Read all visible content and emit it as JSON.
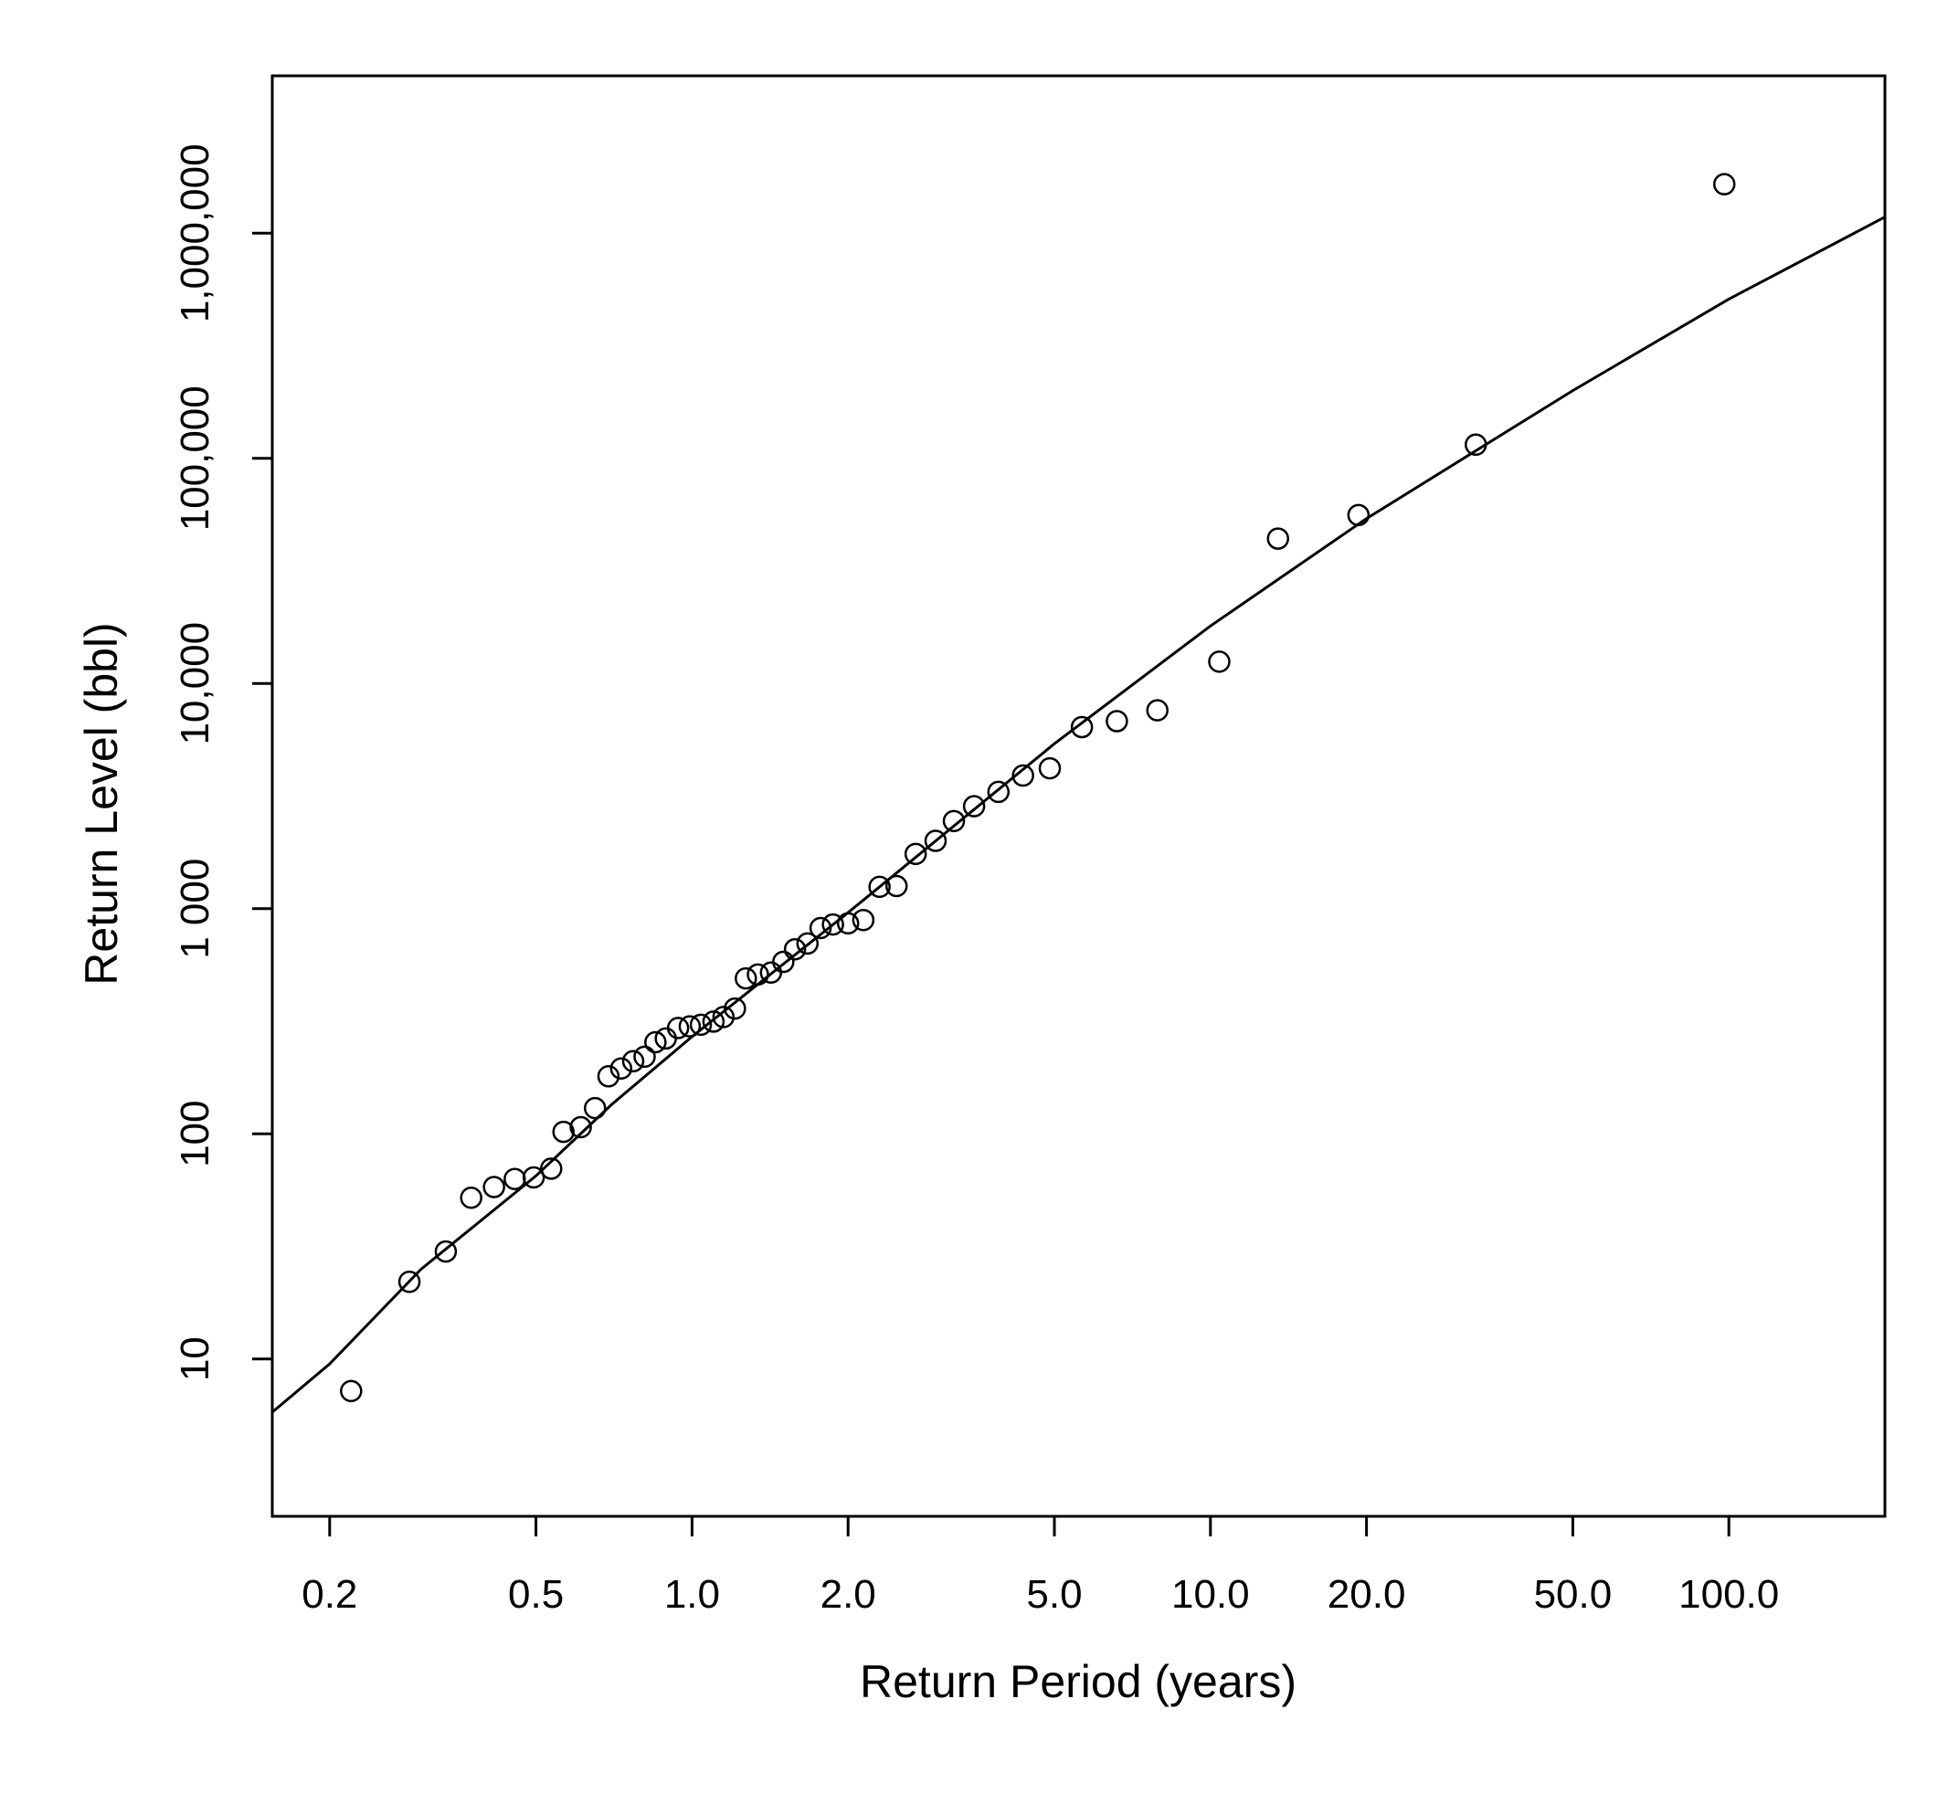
{
  "chart_data": {
    "type": "scatter",
    "title": "",
    "xlabel": "Return Period (years)",
    "ylabel": "Return Level (bbl)",
    "x_scale": "log",
    "y_scale": "log",
    "xlim": [
      0.155,
      200
    ],
    "ylim": [
      2,
      5000000
    ],
    "grid": false,
    "legend": "none",
    "x_ticks": [
      {
        "value": 0.2,
        "label": "0.2"
      },
      {
        "value": 0.5,
        "label": "0.5"
      },
      {
        "value": 1.0,
        "label": "1.0"
      },
      {
        "value": 2.0,
        "label": "2.0"
      },
      {
        "value": 5.0,
        "label": "5.0"
      },
      {
        "value": 10.0,
        "label": "10.0"
      },
      {
        "value": 20.0,
        "label": "20.0"
      },
      {
        "value": 50.0,
        "label": "50.0"
      },
      {
        "value": 100.0,
        "label": "100.0"
      }
    ],
    "y_ticks": [
      {
        "value": 10,
        "label": "10"
      },
      {
        "value": 100,
        "label": "100"
      },
      {
        "value": 1000,
        "label": "1 000"
      },
      {
        "value": 10000,
        "label": "10,000"
      },
      {
        "value": 100000,
        "label": "100,000"
      },
      {
        "value": 1000000,
        "label": "1,000,000"
      }
    ],
    "series": [
      {
        "type": "scatter",
        "marker": "open-circle",
        "points": [
          [
            0.22,
            7.2
          ],
          [
            0.285,
            22
          ],
          [
            0.335,
            30
          ],
          [
            0.375,
            52
          ],
          [
            0.415,
            58
          ],
          [
            0.455,
            63
          ],
          [
            0.495,
            64
          ],
          [
            0.535,
            70
          ],
          [
            0.565,
            102
          ],
          [
            0.61,
            107
          ],
          [
            0.65,
            130
          ],
          [
            0.69,
            180
          ],
          [
            0.73,
            195
          ],
          [
            0.77,
            210
          ],
          [
            0.81,
            220
          ],
          [
            0.85,
            255
          ],
          [
            0.89,
            265
          ],
          [
            0.94,
            295
          ],
          [
            0.99,
            300
          ],
          [
            1.04,
            305
          ],
          [
            1.1,
            315
          ],
          [
            1.15,
            330
          ],
          [
            1.21,
            360
          ],
          [
            1.27,
            490
          ],
          [
            1.34,
            510
          ],
          [
            1.42,
            520
          ],
          [
            1.5,
            580
          ],
          [
            1.58,
            660
          ],
          [
            1.67,
            700
          ],
          [
            1.77,
            820
          ],
          [
            1.87,
            850
          ],
          [
            2.0,
            860
          ],
          [
            2.14,
            890
          ],
          [
            2.3,
            1250
          ],
          [
            2.48,
            1260
          ],
          [
            2.7,
            1750
          ],
          [
            2.95,
            2000
          ],
          [
            3.2,
            2450
          ],
          [
            3.5,
            2850
          ],
          [
            3.9,
            3300
          ],
          [
            4.35,
            3900
          ],
          [
            4.9,
            4200
          ],
          [
            5.65,
            6400
          ],
          [
            6.6,
            6800
          ],
          [
            7.9,
            7600
          ],
          [
            10.4,
            12500
          ],
          [
            13.5,
            44000
          ],
          [
            19.3,
            56000
          ],
          [
            32.5,
            115000
          ],
          [
            98,
            1650000
          ]
        ]
      },
      {
        "type": "line",
        "style": "solid",
        "points": [
          [
            0.155,
            5.8
          ],
          [
            0.2,
            9.5
          ],
          [
            0.3,
            25
          ],
          [
            0.5,
            65
          ],
          [
            0.7,
            135
          ],
          [
            1.0,
            270
          ],
          [
            2.0,
            960
          ],
          [
            5.0,
            5400
          ],
          [
            10.0,
            18000
          ],
          [
            20.0,
            54000
          ],
          [
            50.0,
            200000
          ],
          [
            100.0,
            510000
          ],
          [
            200.0,
            1180000
          ]
        ]
      }
    ]
  }
}
